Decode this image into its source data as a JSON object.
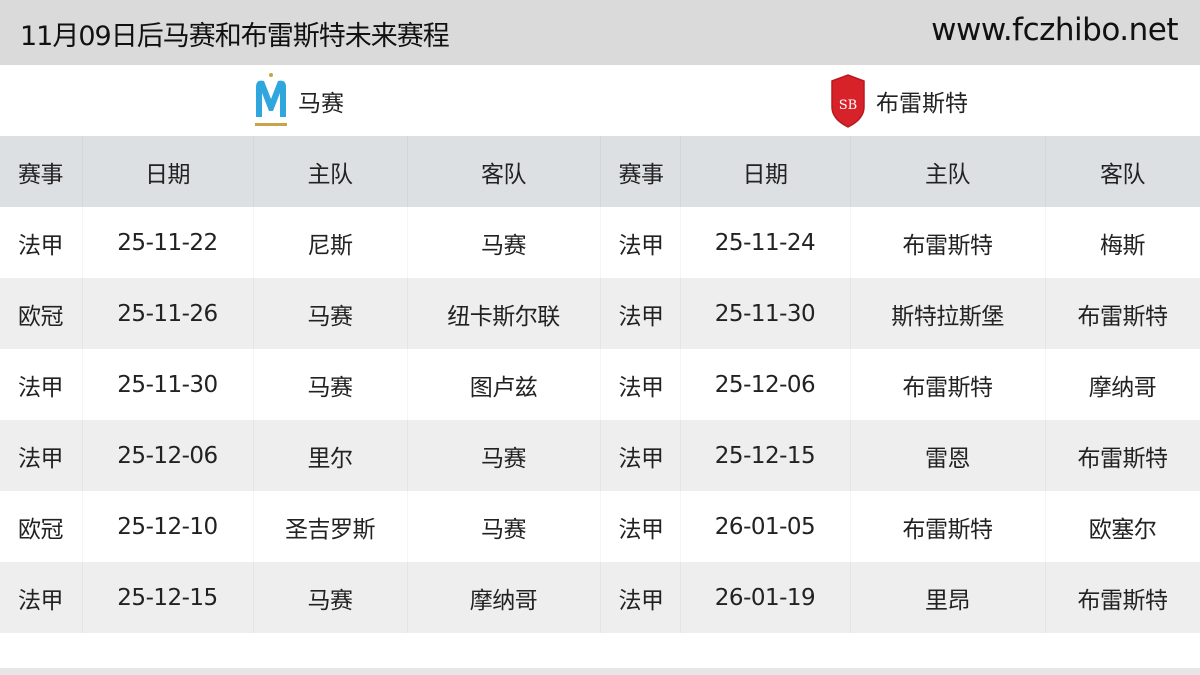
{
  "header": {
    "title": "11月09日后马赛和布雷斯特未来赛程",
    "site": "www.fczhibo.net"
  },
  "teams": {
    "left": {
      "name": "马赛",
      "logo": "marseille-crest"
    },
    "right": {
      "name": "布雷斯特",
      "logo": "brest-crest"
    }
  },
  "columns": [
    "赛事",
    "日期",
    "主队",
    "客队",
    "赛事",
    "日期",
    "主队",
    "客队"
  ],
  "rows": [
    [
      "法甲",
      "25-11-22",
      "尼斯",
      "马赛",
      "法甲",
      "25-11-24",
      "布雷斯特",
      "梅斯"
    ],
    [
      "欧冠",
      "25-11-26",
      "马赛",
      "纽卡斯尔联",
      "法甲",
      "25-11-30",
      "斯特拉斯堡",
      "布雷斯特"
    ],
    [
      "法甲",
      "25-11-30",
      "马赛",
      "图卢兹",
      "法甲",
      "25-12-06",
      "布雷斯特",
      "摩纳哥"
    ],
    [
      "法甲",
      "25-12-06",
      "里尔",
      "马赛",
      "法甲",
      "25-12-15",
      "雷恩",
      "布雷斯特"
    ],
    [
      "欧冠",
      "25-12-10",
      "圣吉罗斯",
      "马赛",
      "法甲",
      "26-01-05",
      "布雷斯特",
      "欧塞尔"
    ],
    [
      "法甲",
      "25-12-15",
      "马赛",
      "摩纳哥",
      "法甲",
      "26-01-19",
      "里昂",
      "布雷斯特"
    ]
  ]
}
